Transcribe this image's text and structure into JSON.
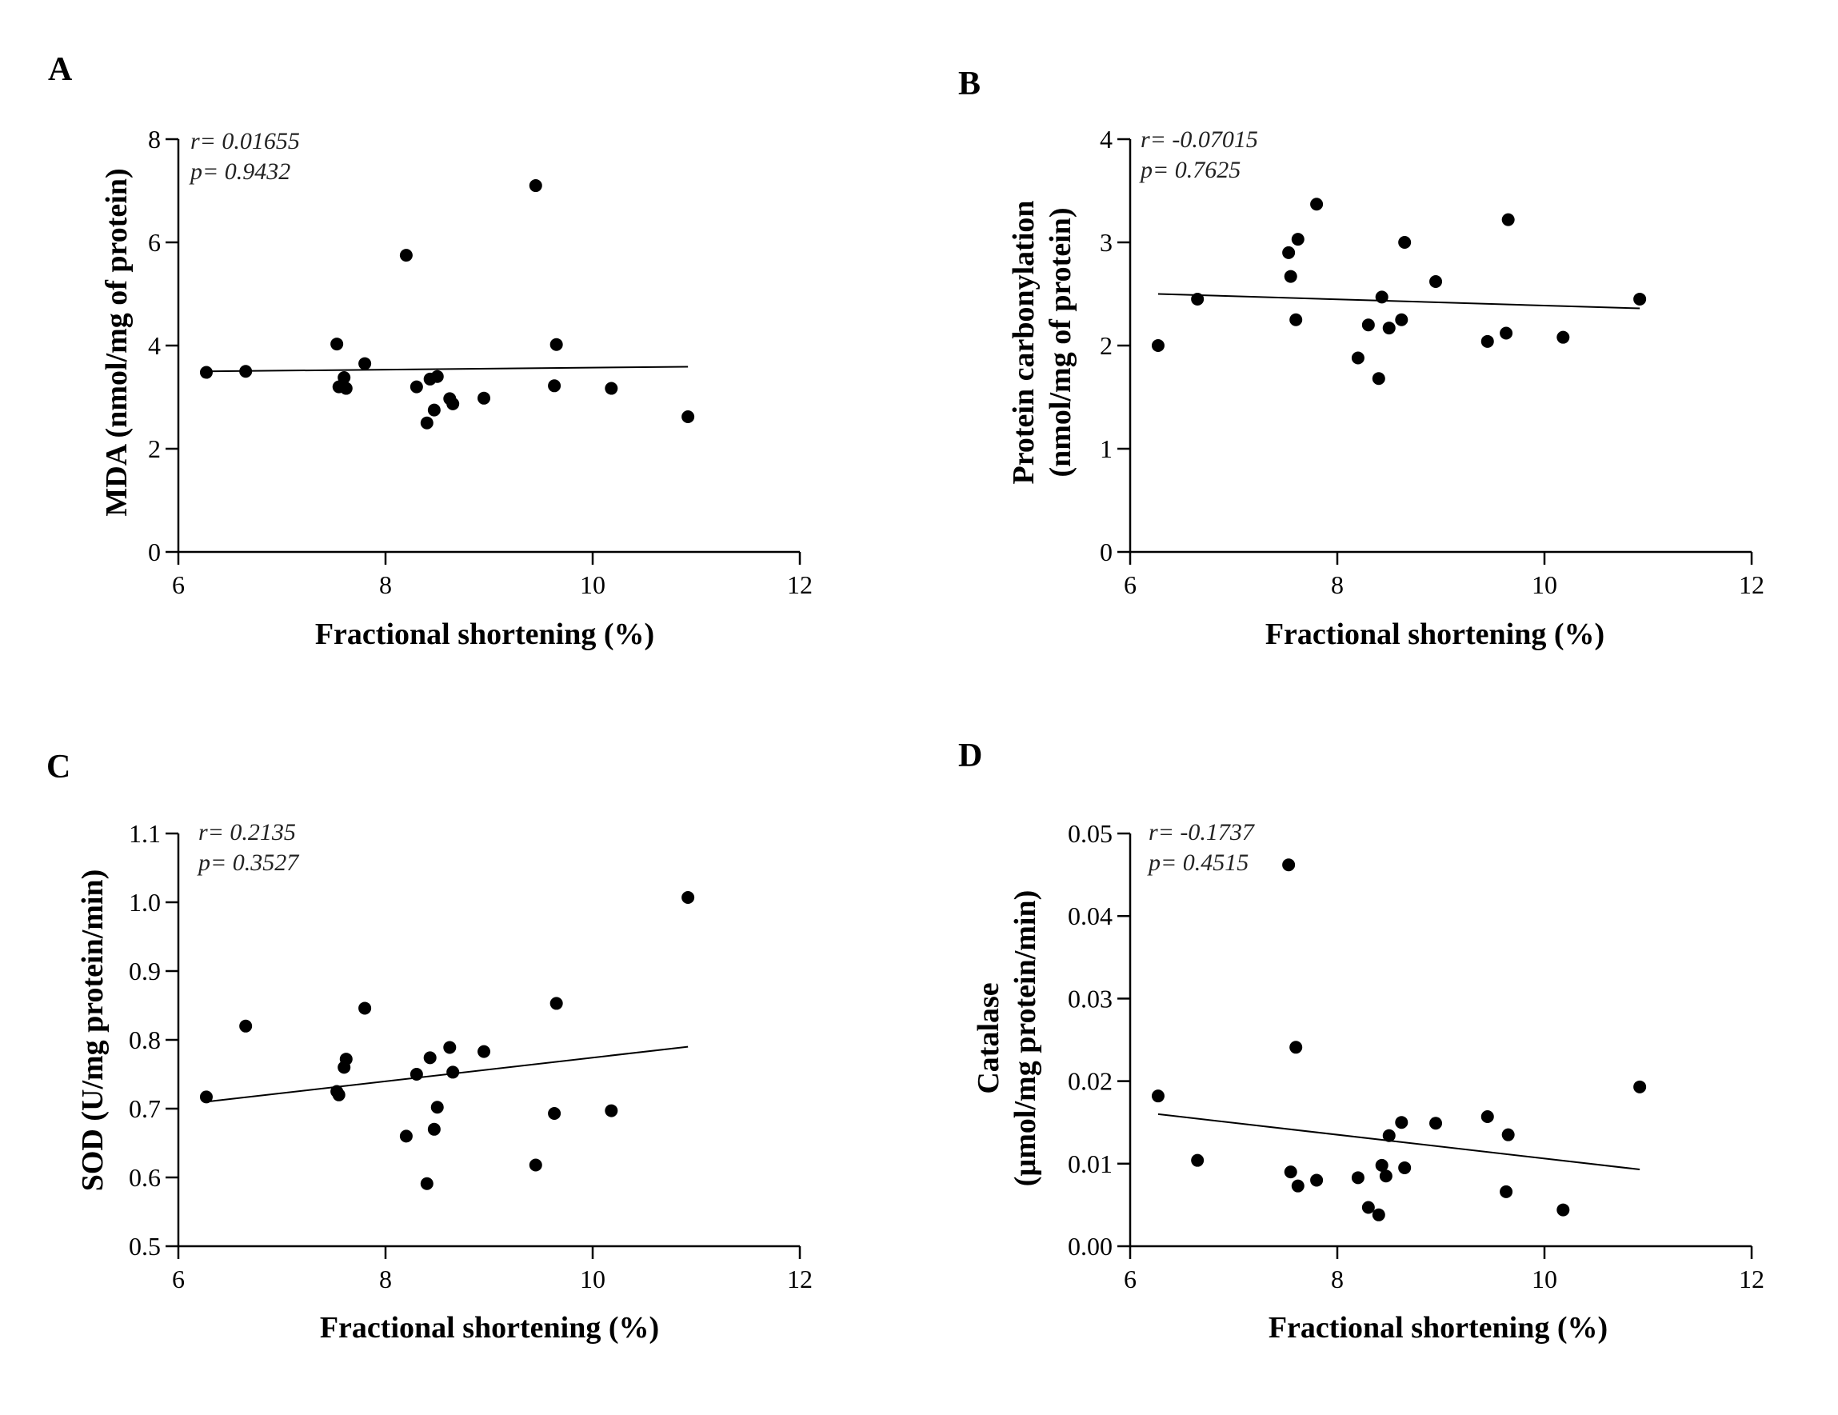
{
  "chart_data": [
    {
      "panel": "A",
      "type": "scatter",
      "title": "",
      "xlabel": "Fractional shortening (%)",
      "ylabel": [
        "MDA (nmol/mg of protein)"
      ],
      "xlim": [
        6,
        12
      ],
      "ylim": [
        0,
        8
      ],
      "xticks": [
        6,
        8,
        10,
        12
      ],
      "yticks": [
        0,
        2,
        4,
        6,
        8
      ],
      "xtick_labels": [
        "6",
        "8",
        "10",
        "12"
      ],
      "ytick_labels": [
        "0",
        "2",
        "4",
        "6",
        "8"
      ],
      "stats": [
        "r= 0.01655",
        "p= 0.9432"
      ],
      "trend": {
        "x": [
          6.27,
          10.92
        ],
        "y": [
          3.5,
          3.59
        ]
      },
      "points": [
        {
          "x": 6.27,
          "y": 3.48
        },
        {
          "x": 6.65,
          "y": 3.5
        },
        {
          "x": 7.53,
          "y": 4.03
        },
        {
          "x": 7.55,
          "y": 3.2
        },
        {
          "x": 7.6,
          "y": 3.38
        },
        {
          "x": 7.62,
          "y": 3.17
        },
        {
          "x": 7.8,
          "y": 3.65
        },
        {
          "x": 8.2,
          "y": 5.75
        },
        {
          "x": 8.3,
          "y": 3.2
        },
        {
          "x": 8.4,
          "y": 2.5
        },
        {
          "x": 8.43,
          "y": 3.35
        },
        {
          "x": 8.47,
          "y": 2.75
        },
        {
          "x": 8.5,
          "y": 3.4
        },
        {
          "x": 8.62,
          "y": 2.97
        },
        {
          "x": 8.65,
          "y": 2.87
        },
        {
          "x": 8.95,
          "y": 2.98
        },
        {
          "x": 9.45,
          "y": 7.1
        },
        {
          "x": 9.63,
          "y": 3.22
        },
        {
          "x": 9.65,
          "y": 4.02
        },
        {
          "x": 10.18,
          "y": 3.17
        },
        {
          "x": 10.92,
          "y": 2.62
        }
      ]
    },
    {
      "panel": "B",
      "type": "scatter",
      "title": "",
      "xlabel": "Fractional shortening (%)",
      "ylabel": [
        "Protein carbonylation",
        "(nmol/mg of protein)"
      ],
      "xlim": [
        6,
        12
      ],
      "ylim": [
        0,
        4
      ],
      "xticks": [
        6,
        8,
        10,
        12
      ],
      "yticks": [
        0,
        1,
        2,
        3,
        4
      ],
      "xtick_labels": [
        "6",
        "8",
        "10",
        "12"
      ],
      "ytick_labels": [
        "0",
        "1",
        "2",
        "3",
        "4"
      ],
      "stats": [
        "r= -0.07015",
        "p= 0.7625"
      ],
      "trend": {
        "x": [
          6.27,
          10.92
        ],
        "y": [
          2.5,
          2.36
        ]
      },
      "points": [
        {
          "x": 6.27,
          "y": 2.0
        },
        {
          "x": 6.65,
          "y": 2.45
        },
        {
          "x": 7.53,
          "y": 2.9
        },
        {
          "x": 7.55,
          "y": 2.67
        },
        {
          "x": 7.6,
          "y": 2.25
        },
        {
          "x": 7.62,
          "y": 3.03
        },
        {
          "x": 7.8,
          "y": 3.37
        },
        {
          "x": 8.2,
          "y": 1.88
        },
        {
          "x": 8.3,
          "y": 2.2
        },
        {
          "x": 8.4,
          "y": 1.68
        },
        {
          "x": 8.43,
          "y": 2.47
        },
        {
          "x": 8.5,
          "y": 2.17
        },
        {
          "x": 8.62,
          "y": 2.25
        },
        {
          "x": 8.65,
          "y": 3.0
        },
        {
          "x": 8.95,
          "y": 2.62
        },
        {
          "x": 9.45,
          "y": 2.04
        },
        {
          "x": 9.63,
          "y": 2.12
        },
        {
          "x": 9.65,
          "y": 3.22
        },
        {
          "x": 10.18,
          "y": 2.08
        },
        {
          "x": 10.92,
          "y": 2.45
        }
      ]
    },
    {
      "panel": "C",
      "type": "scatter",
      "title": "",
      "xlabel": "Fractional shortening (%)",
      "ylabel": [
        "SOD (U/mg protein/min)"
      ],
      "xlim": [
        6,
        12
      ],
      "ylim": [
        0.5,
        1.1
      ],
      "xticks": [
        6,
        8,
        10,
        12
      ],
      "yticks": [
        0.5,
        0.6,
        0.7,
        0.8,
        0.9,
        1.0,
        1.1
      ],
      "xtick_labels": [
        "6",
        "8",
        "10",
        "12"
      ],
      "ytick_labels": [
        "0.5",
        "0.6",
        "0.7",
        "0.8",
        "0.9",
        "1.0",
        "1.1"
      ],
      "stats": [
        "r= 0.2135",
        "p= 0.3527"
      ],
      "trend": {
        "x": [
          6.27,
          10.92
        ],
        "y": [
          0.71,
          0.79
        ]
      },
      "points": [
        {
          "x": 6.27,
          "y": 0.717
        },
        {
          "x": 6.65,
          "y": 0.82
        },
        {
          "x": 7.53,
          "y": 0.725
        },
        {
          "x": 7.55,
          "y": 0.72
        },
        {
          "x": 7.6,
          "y": 0.76
        },
        {
          "x": 7.62,
          "y": 0.772
        },
        {
          "x": 7.8,
          "y": 0.846
        },
        {
          "x": 8.2,
          "y": 0.66
        },
        {
          "x": 8.3,
          "y": 0.75
        },
        {
          "x": 8.4,
          "y": 0.591
        },
        {
          "x": 8.43,
          "y": 0.774
        },
        {
          "x": 8.47,
          "y": 0.67
        },
        {
          "x": 8.5,
          "y": 0.702
        },
        {
          "x": 8.62,
          "y": 0.789
        },
        {
          "x": 8.65,
          "y": 0.753
        },
        {
          "x": 8.95,
          "y": 0.783
        },
        {
          "x": 9.45,
          "y": 0.618
        },
        {
          "x": 9.63,
          "y": 0.693
        },
        {
          "x": 9.65,
          "y": 0.853
        },
        {
          "x": 10.18,
          "y": 0.697
        },
        {
          "x": 10.92,
          "y": 1.007
        }
      ]
    },
    {
      "panel": "D",
      "type": "scatter",
      "title": "",
      "xlabel": "Fractional shortening (%)",
      "ylabel": [
        "Catalase",
        "(µmol/mg protein/min)"
      ],
      "xlim": [
        6,
        12
      ],
      "ylim": [
        0,
        0.05
      ],
      "xticks": [
        6,
        8,
        10,
        12
      ],
      "yticks": [
        0,
        0.01,
        0.02,
        0.03,
        0.04,
        0.05
      ],
      "xtick_labels": [
        "6",
        "8",
        "10",
        "12"
      ],
      "ytick_labels": [
        "0.00",
        "0.01",
        "0.02",
        "0.03",
        "0.04",
        "0.05"
      ],
      "stats": [
        "r= -0.1737",
        "p= 0.4515"
      ],
      "trend": {
        "x": [
          6.27,
          10.92
        ],
        "y": [
          0.016,
          0.0093
        ]
      },
      "points": [
        {
          "x": 6.27,
          "y": 0.0182
        },
        {
          "x": 6.65,
          "y": 0.0104
        },
        {
          "x": 7.53,
          "y": 0.0462
        },
        {
          "x": 7.55,
          "y": 0.009
        },
        {
          "x": 7.6,
          "y": 0.0241
        },
        {
          "x": 7.62,
          "y": 0.0073
        },
        {
          "x": 7.8,
          "y": 0.008
        },
        {
          "x": 8.2,
          "y": 0.0083
        },
        {
          "x": 8.3,
          "y": 0.0047
        },
        {
          "x": 8.4,
          "y": 0.0038
        },
        {
          "x": 8.43,
          "y": 0.0098
        },
        {
          "x": 8.47,
          "y": 0.0085
        },
        {
          "x": 8.5,
          "y": 0.0134
        },
        {
          "x": 8.62,
          "y": 0.015
        },
        {
          "x": 8.65,
          "y": 0.0095
        },
        {
          "x": 8.95,
          "y": 0.0149
        },
        {
          "x": 9.45,
          "y": 0.0157
        },
        {
          "x": 9.63,
          "y": 0.0066
        },
        {
          "x": 9.65,
          "y": 0.0135
        },
        {
          "x": 10.18,
          "y": 0.0044
        },
        {
          "x": 10.92,
          "y": 0.0193
        }
      ]
    }
  ]
}
